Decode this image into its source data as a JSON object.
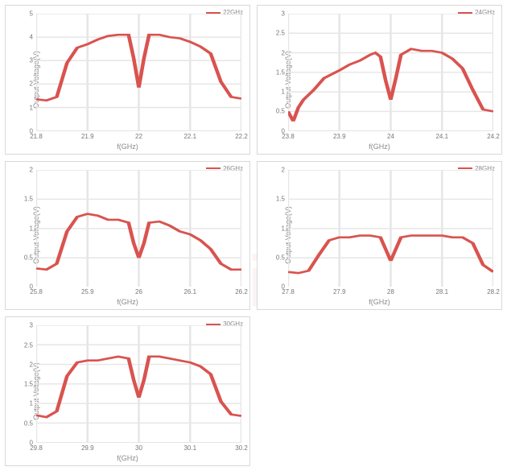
{
  "watermark": "iris",
  "line_color": "#d9534f",
  "grid_color": "#e6e6e6",
  "background_color": "#ffffff",
  "border_color": "#d8d8d8",
  "text_color": "#888888",
  "xlabel": "f(GHz)",
  "ylabel": "Output Voltage(V)",
  "label_fontsize": 9,
  "tick_fontsize": 8,
  "line_width": 1.8,
  "charts": [
    {
      "type": "line",
      "legend": "22GHz",
      "xlim": [
        21.8,
        22.2
      ],
      "ylim": [
        0,
        5
      ],
      "ytick_step": 1,
      "xticks": [
        21.8,
        21.9,
        22,
        22.1,
        22.2
      ],
      "x": [
        21.8,
        21.82,
        21.84,
        21.86,
        21.88,
        21.9,
        21.92,
        21.94,
        21.96,
        21.98,
        21.99,
        22.0,
        22.01,
        22.02,
        22.04,
        22.06,
        22.08,
        22.1,
        22.12,
        22.14,
        22.16,
        22.18,
        22.2
      ],
      "y": [
        1.35,
        1.3,
        1.45,
        2.9,
        3.55,
        3.7,
        3.9,
        4.05,
        4.1,
        4.1,
        3.1,
        1.85,
        3.1,
        4.1,
        4.1,
        4.0,
        3.95,
        3.8,
        3.6,
        3.3,
        2.1,
        1.45,
        1.38
      ]
    },
    {
      "type": "line",
      "legend": "24GHz",
      "xlim": [
        23.8,
        24.2
      ],
      "ylim": [
        0,
        3
      ],
      "ytick_step": 0.5,
      "xticks": [
        23.8,
        23.9,
        24,
        24.1,
        24.2
      ],
      "x": [
        23.8,
        23.81,
        23.82,
        23.83,
        23.85,
        23.87,
        23.9,
        23.92,
        23.94,
        23.96,
        23.97,
        23.98,
        23.99,
        24.0,
        24.01,
        24.02,
        24.04,
        24.06,
        24.08,
        24.1,
        24.12,
        24.14,
        24.16,
        24.18,
        24.2
      ],
      "y": [
        0.5,
        0.25,
        0.6,
        0.8,
        1.05,
        1.35,
        1.55,
        1.7,
        1.8,
        1.95,
        2.0,
        1.9,
        1.3,
        0.8,
        1.35,
        1.95,
        2.1,
        2.05,
        2.05,
        2.0,
        1.85,
        1.6,
        1.05,
        0.55,
        0.5
      ]
    },
    {
      "type": "line",
      "legend": "26GHz",
      "xlim": [
        25.8,
        26.2
      ],
      "ylim": [
        0,
        2
      ],
      "ytick_step": 0.5,
      "xticks": [
        25.8,
        25.9,
        26,
        26.1,
        26.2
      ],
      "x": [
        25.8,
        25.82,
        25.84,
        25.86,
        25.88,
        25.9,
        25.92,
        25.94,
        25.96,
        25.98,
        25.99,
        26.0,
        26.01,
        26.02,
        26.04,
        26.06,
        26.08,
        26.1,
        26.12,
        26.14,
        26.16,
        26.18,
        26.2
      ],
      "y": [
        0.32,
        0.3,
        0.4,
        0.95,
        1.2,
        1.25,
        1.22,
        1.15,
        1.15,
        1.1,
        0.75,
        0.5,
        0.75,
        1.1,
        1.12,
        1.05,
        0.95,
        0.9,
        0.8,
        0.65,
        0.4,
        0.3,
        0.3
      ]
    },
    {
      "type": "line",
      "legend": "28GHz",
      "xlim": [
        27.8,
        28.2
      ],
      "ylim": [
        0,
        2
      ],
      "ytick_step": 0.5,
      "xticks": [
        27.8,
        27.9,
        28,
        28.1,
        28.2
      ],
      "x": [
        27.8,
        27.82,
        27.84,
        27.86,
        27.88,
        27.9,
        27.92,
        27.94,
        27.96,
        27.98,
        27.99,
        28.0,
        28.01,
        28.02,
        28.04,
        28.06,
        28.08,
        28.1,
        28.12,
        28.14,
        28.16,
        28.18,
        28.2
      ],
      "y": [
        0.26,
        0.24,
        0.28,
        0.55,
        0.8,
        0.85,
        0.85,
        0.88,
        0.88,
        0.85,
        0.65,
        0.45,
        0.65,
        0.85,
        0.88,
        0.88,
        0.88,
        0.88,
        0.85,
        0.85,
        0.75,
        0.38,
        0.26
      ]
    },
    {
      "type": "line",
      "legend": "30GHz",
      "xlim": [
        29.8,
        30.2
      ],
      "ylim": [
        0,
        3
      ],
      "ytick_step": 0.5,
      "xticks": [
        29.8,
        29.9,
        30,
        30.1,
        30.2
      ],
      "x": [
        29.8,
        29.82,
        29.84,
        29.86,
        29.88,
        29.9,
        29.92,
        29.94,
        29.96,
        29.98,
        29.99,
        30.0,
        30.01,
        30.02,
        30.04,
        30.06,
        30.08,
        30.1,
        30.12,
        30.14,
        30.16,
        30.18,
        30.2
      ],
      "y": [
        0.7,
        0.65,
        0.8,
        1.7,
        2.05,
        2.1,
        2.1,
        2.15,
        2.2,
        2.15,
        1.6,
        1.15,
        1.6,
        2.2,
        2.2,
        2.15,
        2.1,
        2.05,
        1.95,
        1.75,
        1.05,
        0.72,
        0.68
      ]
    }
  ]
}
